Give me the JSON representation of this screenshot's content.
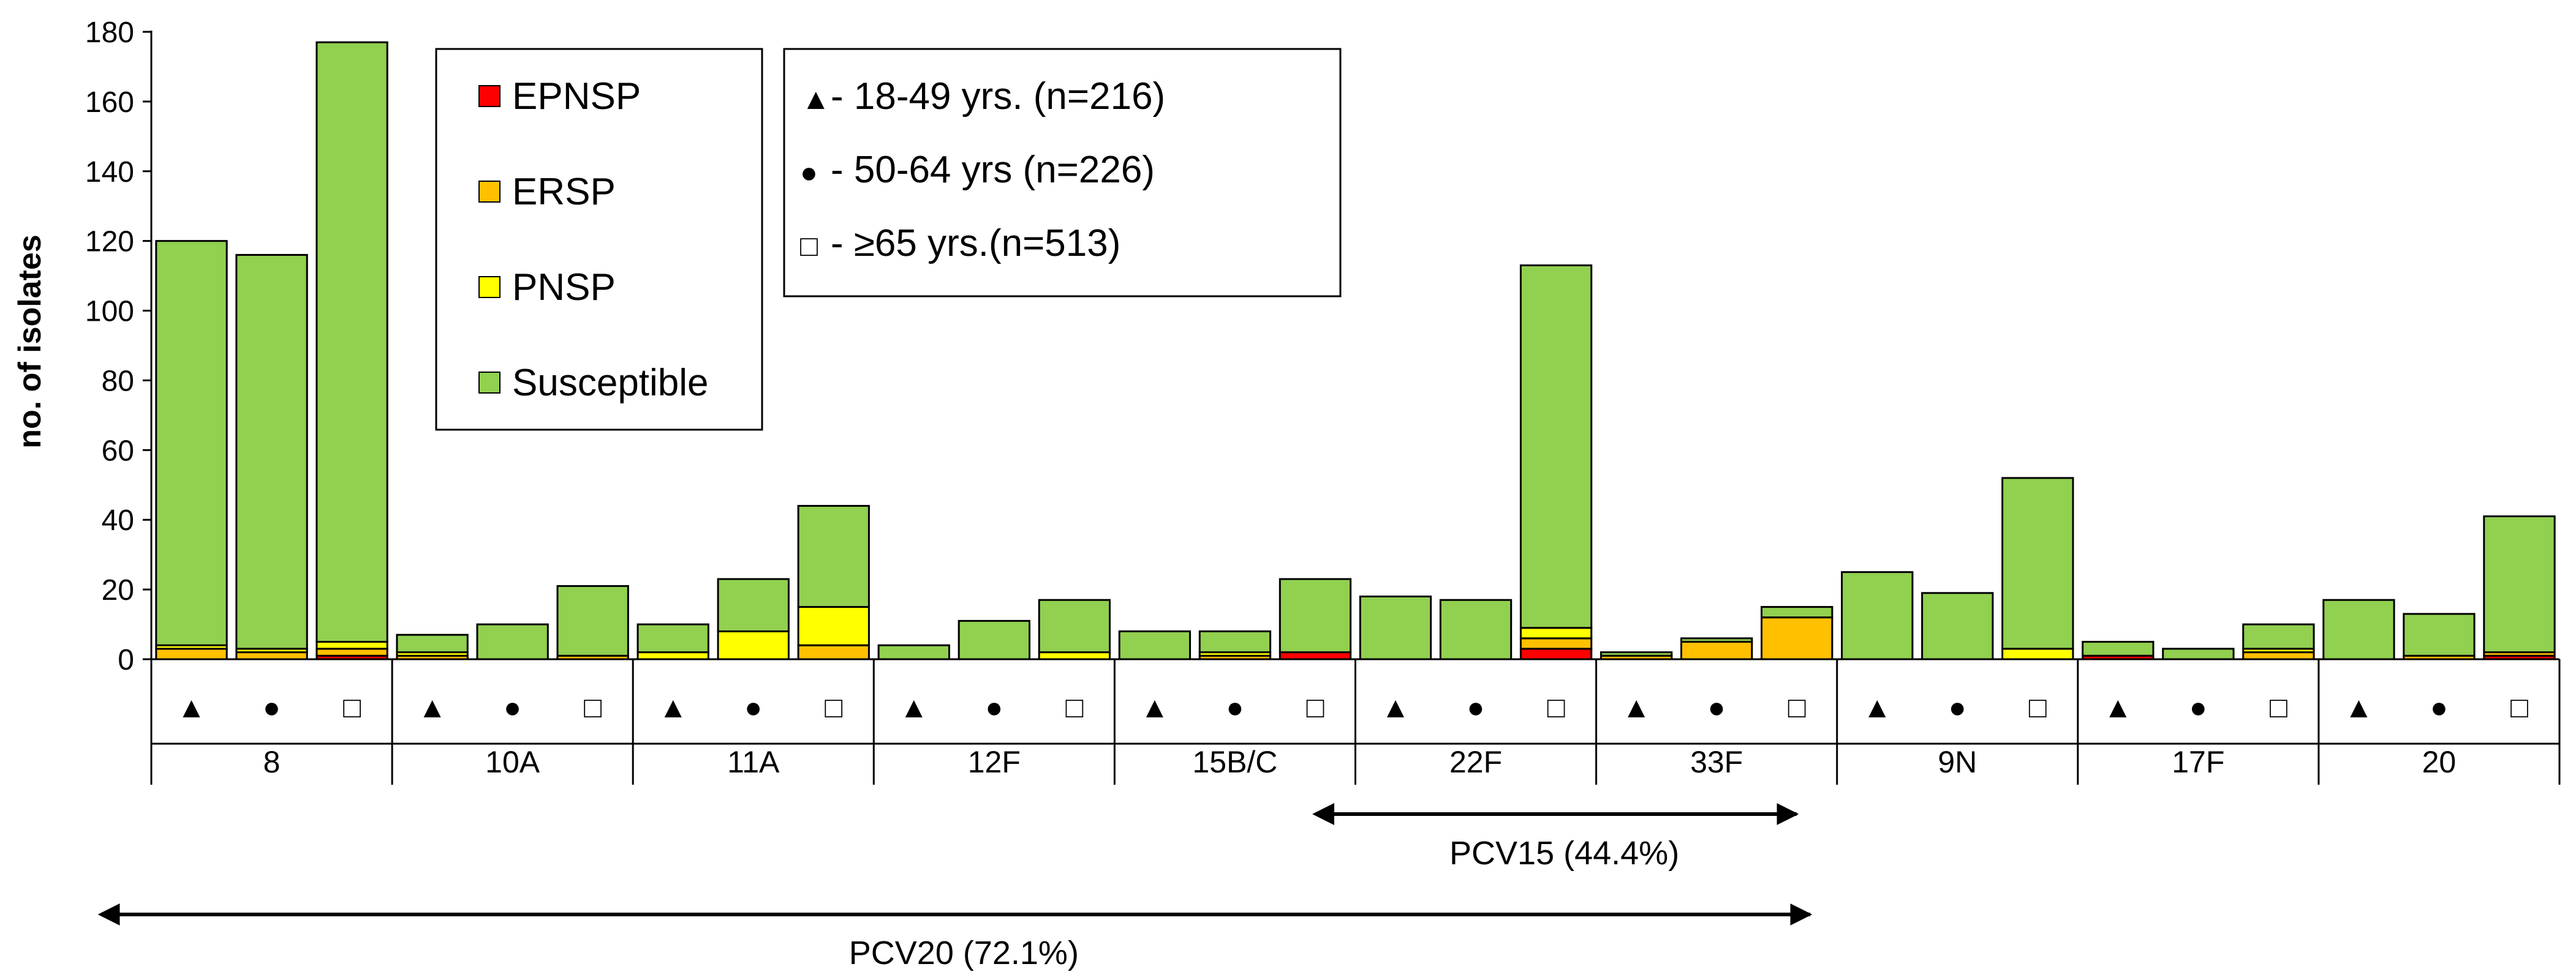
{
  "chart_data": {
    "type": "bar",
    "stacked": true,
    "title": "",
    "xlabel": "",
    "ylabel": "no. of isolates",
    "ylim": [
      0,
      180
    ],
    "yticks": [
      0,
      20,
      40,
      60,
      80,
      100,
      120,
      140,
      160,
      180
    ],
    "grid": false,
    "categories": [
      "8",
      "10A",
      "11A",
      "12F",
      "15B/C",
      "22F",
      "33F",
      "9N",
      "17F",
      "20"
    ],
    "age_groups": [
      {
        "symbol": "▲",
        "label": "18-49 yrs. (n=216)",
        "legend_text": "- 18-49 yrs. (n=216)"
      },
      {
        "symbol": "●",
        "label": "50-64 yrs (n=226)",
        "legend_text": "- 50-64 yrs (n=226)"
      },
      {
        "symbol": "□",
        "label": "≥65 yrs.(n=513)",
        "legend_text": "-  ≥65 yrs.(n=513)"
      }
    ],
    "series": [
      {
        "name": "EPNSP",
        "color": "#ff0000",
        "values": [
          [
            0,
            0,
            1
          ],
          [
            0,
            0,
            0
          ],
          [
            0,
            0,
            0
          ],
          [
            0,
            0,
            0
          ],
          [
            0,
            0,
            2
          ],
          [
            0,
            0,
            3
          ],
          [
            0,
            0,
            0
          ],
          [
            0,
            0,
            0
          ],
          [
            1,
            0,
            0
          ],
          [
            0,
            0,
            1
          ]
        ]
      },
      {
        "name": "ERSP",
        "color": "#ffc000",
        "values": [
          [
            3,
            2,
            2
          ],
          [
            1,
            0,
            1
          ],
          [
            0,
            0,
            4
          ],
          [
            0,
            0,
            0
          ],
          [
            0,
            1,
            0
          ],
          [
            0,
            0,
            3
          ],
          [
            1,
            5,
            12
          ],
          [
            0,
            0,
            0
          ],
          [
            0,
            0,
            2
          ],
          [
            0,
            1,
            1
          ]
        ]
      },
      {
        "name": "PNSP",
        "color": "#ffff00",
        "values": [
          [
            1,
            1,
            2
          ],
          [
            1,
            0,
            0
          ],
          [
            2,
            8,
            11
          ],
          [
            0,
            0,
            2
          ],
          [
            0,
            1,
            0
          ],
          [
            0,
            0,
            3
          ],
          [
            0,
            0,
            0
          ],
          [
            0,
            0,
            3
          ],
          [
            0,
            0,
            1
          ],
          [
            0,
            0,
            0
          ]
        ]
      },
      {
        "name": "Susceptible",
        "color": "#92d050",
        "values": [
          [
            116,
            113,
            172
          ],
          [
            5,
            10,
            20
          ],
          [
            8,
            15,
            29
          ],
          [
            4,
            11,
            15
          ],
          [
            8,
            6,
            21
          ],
          [
            18,
            17,
            104
          ],
          [
            1,
            1,
            3
          ],
          [
            25,
            19,
            49
          ],
          [
            4,
            3,
            7
          ],
          [
            17,
            12,
            39
          ]
        ]
      }
    ],
    "legend_position": "top-left",
    "annotations": [
      {
        "label": "PCV15 (44.4%)",
        "from_category": "22F",
        "to_category": "33F"
      },
      {
        "label": "PCV20 (72.1%)",
        "from_category": "8",
        "to_category": "33F"
      }
    ]
  }
}
